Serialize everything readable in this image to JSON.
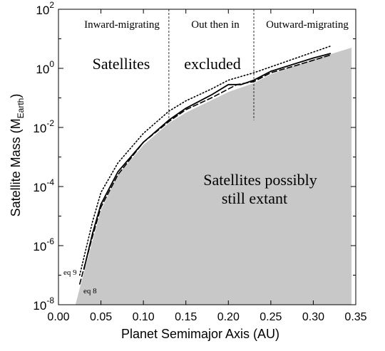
{
  "chart_data": {
    "type": "line",
    "xlabel": "Planet Semimajor Axis (AU)",
    "ylabel": "Satellite Mass (M",
    "ylabel_sub": "Earth",
    "ylabel_close": ")",
    "xlim": [
      0.0,
      0.35
    ],
    "ylim_log10": [
      -8,
      2
    ],
    "y_scale": "log",
    "x_ticks": [
      0.0,
      0.05,
      0.1,
      0.15,
      0.2,
      0.25,
      0.3,
      0.35
    ],
    "x_tick_labels": [
      "0.00",
      "0.05",
      "0.10",
      "0.15",
      "0.20",
      "0.25",
      "0.30",
      "0.35"
    ],
    "y_tick_exponents": [
      -8,
      -6,
      -4,
      -2,
      0,
      2
    ],
    "y_tick_labels": [
      "10",
      "10",
      "10",
      "10",
      "10",
      "10"
    ],
    "y_tick_exp_labels": [
      "-8",
      "-6",
      "-4",
      "-2",
      "0",
      "2"
    ],
    "region_labels": [
      "Inward-migrating",
      "Out then in",
      "Outward-migrating"
    ],
    "region_boundaries": [
      0.13,
      0.23
    ],
    "annotations": {
      "excluded_left": "Satellites",
      "excluded_right": "excluded",
      "extant_line1": "Satellites possibly",
      "extant_line2": "still extant",
      "eq9": "eq 9",
      "eq8": "eq 8"
    },
    "colors": {
      "shaded": "#c8c8c8",
      "line": "#000000"
    },
    "series": [
      {
        "style": "solid",
        "points": [
          [
            0.03,
            -6.8
          ],
          [
            0.04,
            -5.6
          ],
          [
            0.05,
            -4.6
          ],
          [
            0.07,
            -3.5
          ],
          [
            0.1,
            -2.5
          ],
          [
            0.13,
            -1.75
          ],
          [
            0.15,
            -1.35
          ],
          [
            0.18,
            -0.9
          ],
          [
            0.2,
            -0.55
          ],
          [
            0.215,
            -0.55
          ],
          [
            0.23,
            -0.4
          ],
          [
            0.25,
            -0.1
          ],
          [
            0.3,
            0.35
          ],
          [
            0.32,
            0.5
          ]
        ]
      },
      {
        "style": "dashed",
        "points": [
          [
            0.025,
            -7.3
          ],
          [
            0.04,
            -5.7
          ],
          [
            0.05,
            -4.7
          ],
          [
            0.07,
            -3.6
          ],
          [
            0.1,
            -2.5
          ],
          [
            0.13,
            -1.8
          ],
          [
            0.15,
            -1.4
          ],
          [
            0.18,
            -1.0
          ],
          [
            0.21,
            -0.55
          ],
          [
            0.23,
            -0.45
          ],
          [
            0.25,
            -0.15
          ],
          [
            0.28,
            0.1
          ],
          [
            0.32,
            0.45
          ]
        ]
      },
      {
        "style": "dotted",
        "points": [
          [
            0.025,
            -7.0
          ],
          [
            0.04,
            -5.2
          ],
          [
            0.05,
            -4.2
          ],
          [
            0.07,
            -3.2
          ],
          [
            0.1,
            -2.2
          ],
          [
            0.13,
            -1.45
          ],
          [
            0.15,
            -1.1
          ],
          [
            0.18,
            -0.7
          ],
          [
            0.2,
            -0.4
          ],
          [
            0.23,
            -0.15
          ],
          [
            0.25,
            0.05
          ],
          [
            0.28,
            0.35
          ],
          [
            0.32,
            0.75
          ]
        ]
      },
      {
        "style": "shaded-boundary",
        "points": [
          [
            0.02,
            -8.0
          ],
          [
            0.03,
            -6.9
          ],
          [
            0.05,
            -4.8
          ],
          [
            0.07,
            -3.6
          ],
          [
            0.1,
            -2.6
          ],
          [
            0.13,
            -1.85
          ],
          [
            0.15,
            -1.5
          ],
          [
            0.2,
            -0.8
          ],
          [
            0.23,
            -0.5
          ],
          [
            0.25,
            -0.2
          ],
          [
            0.3,
            0.3
          ],
          [
            0.345,
            0.7
          ]
        ]
      }
    ]
  }
}
